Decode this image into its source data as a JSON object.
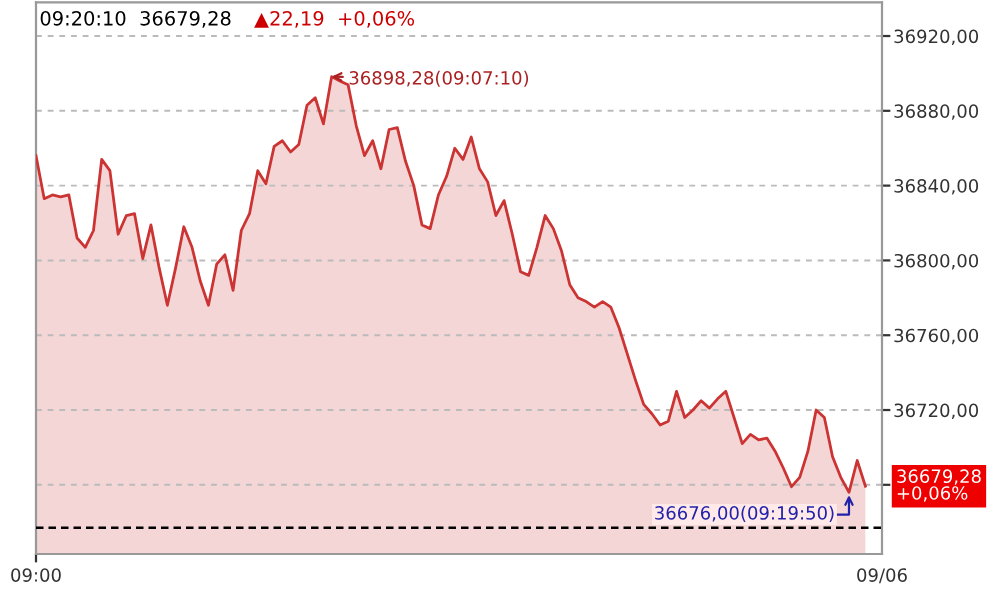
{
  "chart_data": {
    "type": "area",
    "title": "09:20:10  36679,28",
    "subtitle": "▲22,19  +0,06%",
    "categories": [
      "09:00",
      null,
      null,
      null,
      null,
      null,
      null,
      null,
      null,
      null,
      null,
      null,
      null,
      null,
      null,
      null,
      null,
      null,
      null,
      null,
      null,
      null,
      null,
      null,
      null,
      null,
      null,
      null,
      null,
      null,
      null,
      null,
      null,
      null,
      null,
      null,
      null,
      null,
      null,
      null,
      null,
      null,
      null,
      null,
      null,
      null,
      null,
      null,
      null,
      null,
      null,
      null,
      null,
      null,
      null,
      null,
      null,
      null,
      null,
      null,
      null,
      null,
      null,
      null,
      null,
      null,
      null,
      null,
      null,
      null,
      null,
      null,
      null,
      null,
      null,
      null,
      null,
      null,
      null,
      null,
      null,
      null,
      null,
      null,
      null,
      null,
      null,
      null,
      null,
      null,
      null,
      null,
      null,
      null,
      null,
      null,
      null,
      null,
      null,
      null,
      null,
      null
    ],
    "series": [
      {
        "color": "#cc3333",
        "values": [
          36856,
          36833,
          36835,
          36834,
          36835,
          36812,
          36807,
          36816,
          36854,
          36848,
          36814,
          36824,
          36825,
          36801,
          36819,
          36796,
          36776,
          36796,
          36818,
          36807,
          36789,
          36776,
          36798,
          36803,
          36784,
          36816,
          36825,
          36848,
          36841,
          36861,
          36864,
          36858,
          36862,
          36883,
          36887,
          36873,
          36898.28,
          36896,
          36894,
          36872,
          36856,
          36864,
          36849,
          36870,
          36871,
          36853,
          36840,
          36819,
          36817,
          36835,
          36845,
          36860,
          36854,
          36866,
          36849,
          36842,
          36824,
          36832,
          36814,
          36794,
          36792,
          36807,
          36824,
          36817,
          36805,
          36787,
          36780,
          36778,
          36775,
          36778,
          36775,
          36764,
          36750,
          36736,
          36723,
          36718,
          36712,
          36714,
          36730,
          36716,
          36720,
          36725,
          36721,
          36726,
          36730,
          36716,
          36702,
          36707,
          36704,
          36705,
          36698,
          36689,
          36679,
          36684,
          36698,
          36720,
          36716,
          36695,
          36684,
          36676.0,
          36693,
          36679.28
        ]
      }
    ],
    "ylim": [
      36643,
      36938
    ],
    "yticks": [
      {
        "value": 36680,
        "label": null
      },
      {
        "value": 36720,
        "label": "36720,00"
      },
      {
        "value": 36760,
        "label": "36760,00"
      },
      {
        "value": 36800,
        "label": "36800,00"
      },
      {
        "value": 36840,
        "label": "36840,00"
      },
      {
        "value": 36880,
        "label": "36880,00"
      },
      {
        "value": 36920,
        "label": "36920,00"
      }
    ],
    "grid": "y",
    "ref_lines": [
      {
        "axis": "y",
        "value": 36657,
        "color": "#000000",
        "line_style": "dashed"
      }
    ],
    "annotations": [
      "36898,28(09:07:10)",
      "36676,00(09:19:50)",
      "36679,28\n+0,06%",
      "09/06"
    ]
  }
}
